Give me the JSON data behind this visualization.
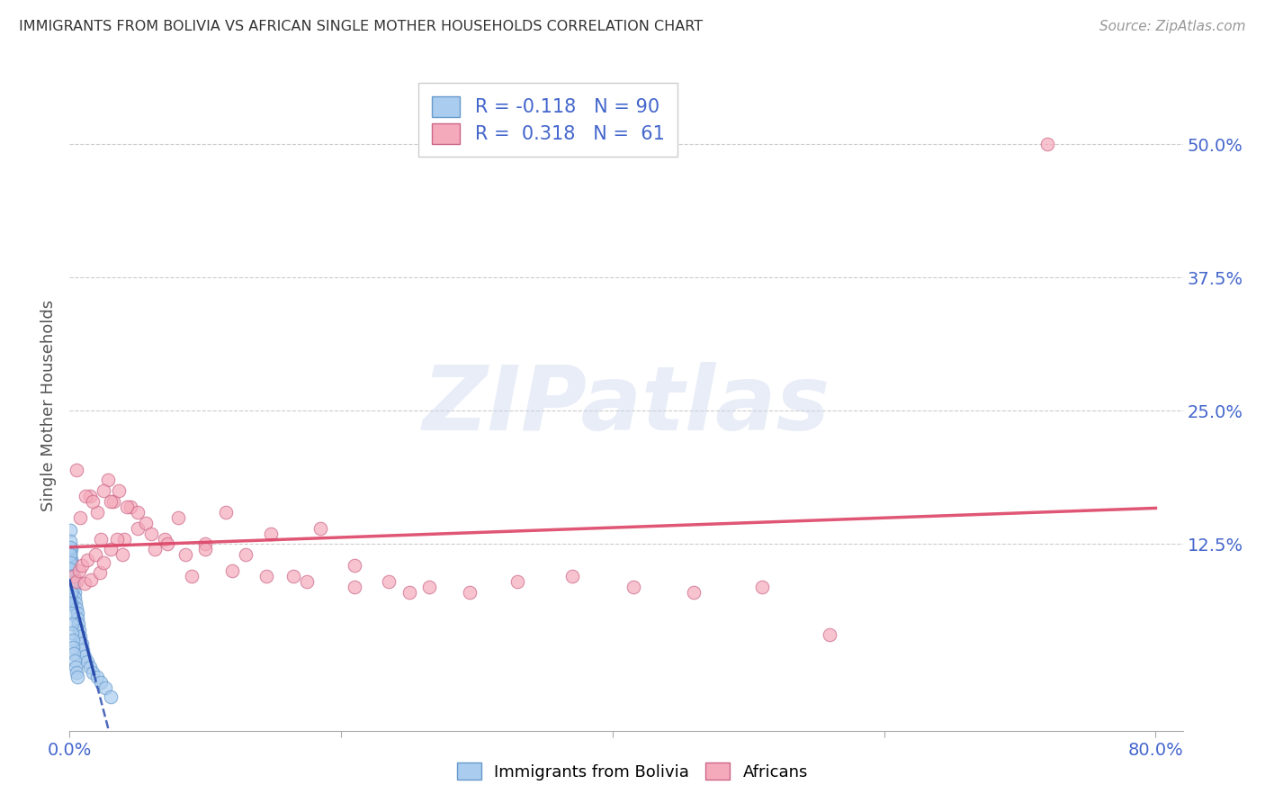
{
  "title": "IMMIGRANTS FROM BOLIVIA VS AFRICAN SINGLE MOTHER HOUSEHOLDS CORRELATION CHART",
  "source": "Source: ZipAtlas.com",
  "ylabel": "Single Mother Households",
  "watermark": "ZIPatlas",
  "xlim": [
    0.0,
    0.82
  ],
  "ylim": [
    -0.05,
    0.56
  ],
  "xtick_vals": [
    0.0,
    0.2,
    0.4,
    0.6,
    0.8
  ],
  "xtick_labels": [
    "0.0%",
    "",
    "",
    "",
    "80.0%"
  ],
  "ytick_vals_right": [
    0.125,
    0.25,
    0.375,
    0.5
  ],
  "ytick_labels_right": [
    "12.5%",
    "25.0%",
    "37.5%",
    "50.0%"
  ],
  "bolivia_color": "#aaccee",
  "bolivia_edge": "#6699cc",
  "african_color": "#f5aabb",
  "african_edge": "#cc6688",
  "bolivia_R": -0.118,
  "bolivia_N": 90,
  "african_R": 0.318,
  "african_N": 61,
  "legend_label_bolivia": "Immigrants from Bolivia",
  "legend_label_african": "Africans",
  "bolivia_line_color": "#2244aa",
  "african_line_color": "#dd4466",
  "right_tick_color": "#4466cc",
  "bolivia_scatter_x": [
    0.0002,
    0.0003,
    0.0004,
    0.0005,
    0.0006,
    0.0007,
    0.0008,
    0.0009,
    0.001,
    0.001,
    0.0011,
    0.0012,
    0.0013,
    0.0014,
    0.0015,
    0.0015,
    0.0016,
    0.0017,
    0.0018,
    0.0019,
    0.002,
    0.002,
    0.0021,
    0.0022,
    0.0023,
    0.0024,
    0.0025,
    0.0026,
    0.0027,
    0.0028,
    0.0004,
    0.0005,
    0.0006,
    0.0007,
    0.0008,
    0.0009,
    0.001,
    0.0011,
    0.0012,
    0.0013,
    0.0003,
    0.0004,
    0.0005,
    0.0006,
    0.0007,
    0.0008,
    0.0009,
    0.001,
    0.0011,
    0.0012,
    0.003,
    0.0035,
    0.004,
    0.0045,
    0.005,
    0.0055,
    0.006,
    0.0065,
    0.007,
    0.008,
    0.009,
    0.01,
    0.011,
    0.013,
    0.015,
    0.017,
    0.02,
    0.023,
    0.026,
    0.03,
    0.0002,
    0.0003,
    0.0004,
    0.0005,
    0.0006,
    0.0007,
    0.0008,
    0.0009,
    0.001,
    0.0012,
    0.0014,
    0.0016,
    0.0019,
    0.0022,
    0.0026,
    0.003,
    0.0035,
    0.0042,
    0.005,
    0.006
  ],
  "bolivia_scatter_y": [
    0.095,
    0.1,
    0.088,
    0.092,
    0.105,
    0.098,
    0.09,
    0.085,
    0.093,
    0.11,
    0.088,
    0.095,
    0.082,
    0.096,
    0.091,
    0.084,
    0.097,
    0.089,
    0.093,
    0.086,
    0.08,
    0.092,
    0.088,
    0.095,
    0.084,
    0.09,
    0.085,
    0.078,
    0.082,
    0.088,
    0.118,
    0.112,
    0.108,
    0.115,
    0.105,
    0.12,
    0.11,
    0.095,
    0.1,
    0.092,
    0.078,
    0.083,
    0.075,
    0.088,
    0.08,
    0.072,
    0.085,
    0.076,
    0.069,
    0.08,
    0.086,
    0.08,
    0.075,
    0.07,
    0.065,
    0.06,
    0.055,
    0.05,
    0.044,
    0.038,
    0.032,
    0.026,
    0.02,
    0.015,
    0.01,
    0.005,
    0.0,
    -0.005,
    -0.01,
    -0.018,
    0.138,
    0.128,
    0.122,
    0.115,
    0.108,
    0.102,
    0.095,
    0.088,
    0.08,
    0.07,
    0.06,
    0.05,
    0.042,
    0.035,
    0.028,
    0.022,
    0.016,
    0.01,
    0.005,
    0.0
  ],
  "african_scatter_x": [
    0.003,
    0.005,
    0.007,
    0.009,
    0.011,
    0.013,
    0.016,
    0.019,
    0.022,
    0.025,
    0.028,
    0.032,
    0.036,
    0.04,
    0.045,
    0.05,
    0.056,
    0.063,
    0.07,
    0.08,
    0.09,
    0.1,
    0.115,
    0.13,
    0.148,
    0.165,
    0.185,
    0.21,
    0.235,
    0.265,
    0.295,
    0.33,
    0.37,
    0.415,
    0.46,
    0.51,
    0.56,
    0.015,
    0.02,
    0.025,
    0.03,
    0.035,
    0.042,
    0.05,
    0.06,
    0.072,
    0.085,
    0.1,
    0.12,
    0.145,
    0.175,
    0.21,
    0.25,
    0.005,
    0.008,
    0.012,
    0.017,
    0.023,
    0.03,
    0.039,
    0.72
  ],
  "african_scatter_y": [
    0.095,
    0.09,
    0.1,
    0.105,
    0.088,
    0.11,
    0.092,
    0.115,
    0.098,
    0.108,
    0.185,
    0.165,
    0.175,
    0.13,
    0.16,
    0.14,
    0.145,
    0.12,
    0.13,
    0.15,
    0.095,
    0.125,
    0.155,
    0.115,
    0.135,
    0.095,
    0.14,
    0.105,
    0.09,
    0.085,
    0.08,
    0.09,
    0.095,
    0.085,
    0.08,
    0.085,
    0.04,
    0.17,
    0.155,
    0.175,
    0.165,
    0.13,
    0.16,
    0.155,
    0.135,
    0.125,
    0.115,
    0.12,
    0.1,
    0.095,
    0.09,
    0.085,
    0.08,
    0.195,
    0.15,
    0.17,
    0.165,
    0.13,
    0.12,
    0.115,
    0.5
  ]
}
